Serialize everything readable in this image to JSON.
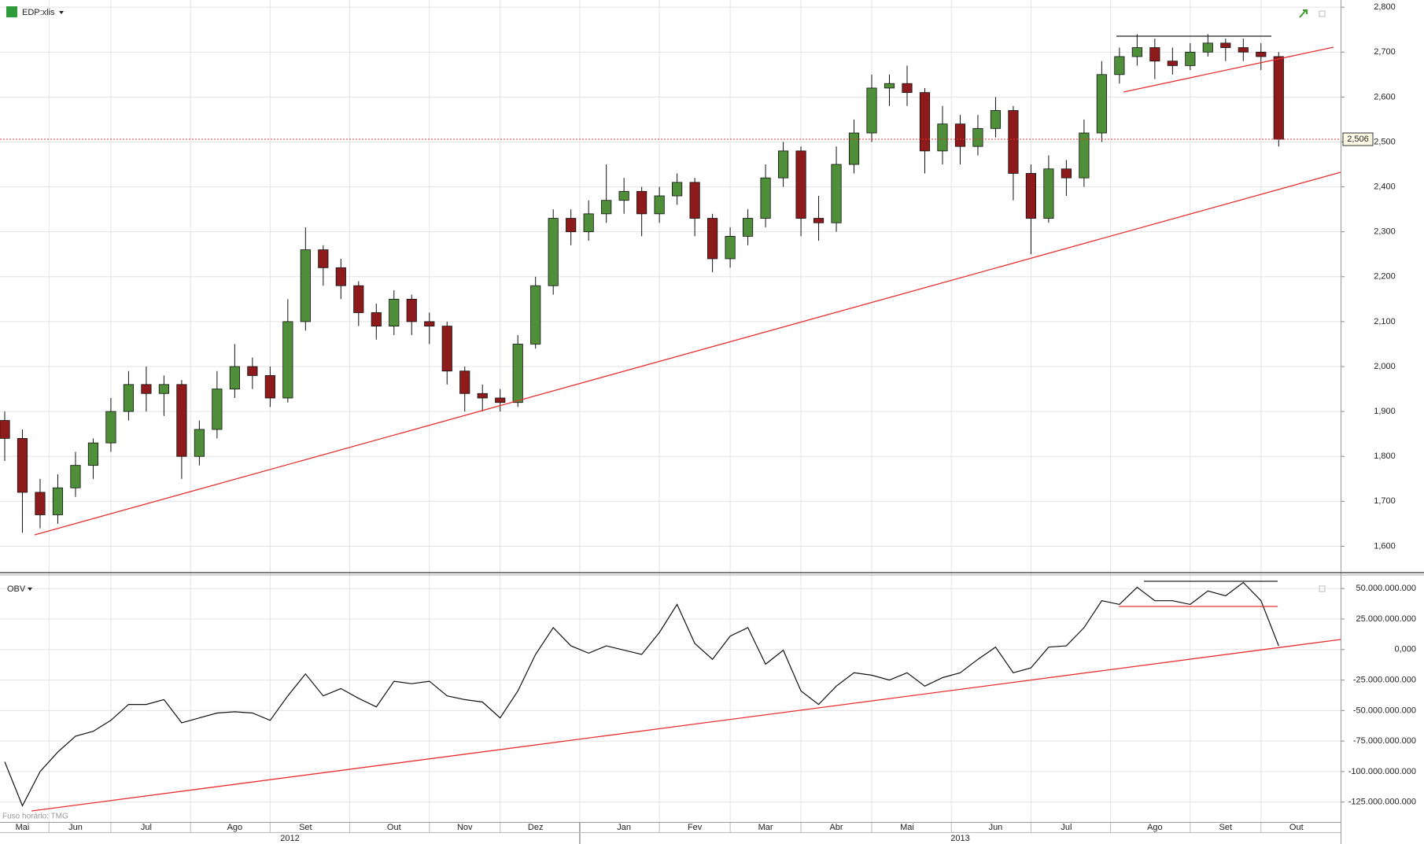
{
  "chart_data": [
    {
      "type": "candlestick",
      "title": "EDP:xlis",
      "categories": [
        null,
        "Mai",
        null,
        null,
        "Jun",
        null,
        null,
        null,
        "Jul",
        null,
        null,
        null,
        null,
        "Ago",
        null,
        null,
        null,
        "Set",
        null,
        null,
        null,
        null,
        "Out",
        null,
        null,
        null,
        "Nov",
        null,
        null,
        null,
        "Dez",
        null,
        null,
        null,
        null,
        "Jan",
        null,
        null,
        null,
        "Fev",
        null,
        null,
        null,
        "Mar",
        null,
        null,
        null,
        "Abr",
        null,
        null,
        null,
        "Mai",
        null,
        null,
        null,
        null,
        "Jun",
        null,
        null,
        null,
        "Jul",
        null,
        null,
        null,
        null,
        "Ago",
        null,
        null,
        null,
        "Set",
        null,
        null,
        null,
        "Out"
      ],
      "open": [
        1.88,
        1.84,
        1.72,
        1.67,
        1.73,
        1.78,
        1.83,
        1.9,
        1.96,
        1.94,
        1.96,
        1.8,
        1.86,
        1.95,
        2.0,
        1.98,
        1.93,
        2.1,
        2.26,
        2.22,
        2.18,
        2.12,
        2.09,
        2.15,
        2.1,
        2.09,
        1.99,
        1.94,
        1.93,
        1.92,
        2.05,
        2.18,
        2.33,
        2.3,
        2.34,
        2.37,
        2.39,
        2.34,
        2.38,
        2.41,
        2.33,
        2.24,
        2.29,
        2.33,
        2.42,
        2.48,
        2.33,
        2.32,
        2.45,
        2.52,
        2.62,
        2.63,
        2.61,
        2.48,
        2.54,
        2.49,
        2.53,
        2.57,
        2.43,
        2.33,
        2.44,
        2.42,
        2.52,
        2.65,
        2.69,
        2.71,
        2.68,
        2.67,
        2.7,
        2.72,
        2.71,
        2.7,
        2.69,
        null
      ],
      "high": [
        1.9,
        1.86,
        1.75,
        1.76,
        1.81,
        1.84,
        1.93,
        1.99,
        2.0,
        1.98,
        1.97,
        1.88,
        1.99,
        2.05,
        2.02,
        2.0,
        2.15,
        2.31,
        2.27,
        2.24,
        2.19,
        2.14,
        2.17,
        2.16,
        2.12,
        2.1,
        2.0,
        1.96,
        1.95,
        2.07,
        2.2,
        2.35,
        2.35,
        2.37,
        2.45,
        2.42,
        2.4,
        2.4,
        2.43,
        2.42,
        2.34,
        2.31,
        2.35,
        2.45,
        2.5,
        2.49,
        2.38,
        2.49,
        2.55,
        2.65,
        2.65,
        2.67,
        2.62,
        2.58,
        2.56,
        2.56,
        2.6,
        2.58,
        2.45,
        2.47,
        2.46,
        2.55,
        2.68,
        2.71,
        2.74,
        2.73,
        2.71,
        2.72,
        2.74,
        2.73,
        2.73,
        2.72,
        2.7,
        null
      ],
      "low": [
        1.79,
        1.63,
        1.64,
        1.65,
        1.71,
        1.75,
        1.81,
        1.88,
        1.9,
        1.89,
        1.75,
        1.78,
        1.84,
        1.93,
        1.95,
        1.91,
        1.92,
        2.08,
        2.18,
        2.15,
        2.09,
        2.06,
        2.07,
        2.07,
        2.05,
        1.96,
        1.9,
        1.9,
        1.9,
        1.91,
        2.04,
        2.16,
        2.27,
        2.28,
        2.32,
        2.34,
        2.29,
        2.32,
        2.36,
        2.29,
        2.21,
        2.22,
        2.27,
        2.31,
        2.4,
        2.29,
        2.28,
        2.3,
        2.43,
        2.5,
        2.58,
        2.58,
        2.43,
        2.45,
        2.45,
        2.47,
        2.51,
        2.37,
        2.25,
        2.32,
        2.38,
        2.4,
        2.5,
        2.63,
        2.67,
        2.64,
        2.65,
        2.66,
        2.69,
        2.68,
        2.68,
        2.66,
        2.49,
        null
      ],
      "close": [
        1.84,
        1.72,
        1.67,
        1.73,
        1.78,
        1.83,
        1.9,
        1.96,
        1.94,
        1.96,
        1.8,
        1.86,
        1.95,
        2.0,
        1.98,
        1.93,
        2.1,
        2.26,
        2.22,
        2.18,
        2.12,
        2.09,
        2.15,
        2.1,
        2.09,
        1.99,
        1.94,
        1.93,
        1.92,
        2.05,
        2.18,
        2.33,
        2.3,
        2.34,
        2.37,
        2.39,
        2.34,
        2.38,
        2.41,
        2.33,
        2.24,
        2.29,
        2.33,
        2.42,
        2.48,
        2.33,
        2.32,
        2.45,
        2.52,
        2.62,
        2.63,
        2.61,
        2.48,
        2.54,
        2.49,
        2.53,
        2.57,
        2.43,
        2.33,
        2.44,
        2.42,
        2.52,
        2.65,
        2.69,
        2.71,
        2.68,
        2.67,
        2.7,
        2.72,
        2.71,
        2.7,
        2.69,
        2.506,
        null
      ],
      "last_label": "2,506",
      "up_color": "#4f8f3a",
      "down_color": "#8e1b1b",
      "ylim": [
        1.543,
        2.816
      ],
      "yticks": [
        {
          "value": 1.6,
          "label": "1,600"
        },
        {
          "value": 1.7,
          "label": "1,700"
        },
        {
          "value": 1.8,
          "label": "1,800"
        },
        {
          "value": 1.9,
          "label": "1,900"
        },
        {
          "value": 2.0,
          "label": "2,000"
        },
        {
          "value": 2.1,
          "label": "2,100"
        },
        {
          "value": 2.2,
          "label": "2,200"
        },
        {
          "value": 2.3,
          "label": "2,300"
        },
        {
          "value": 2.4,
          "label": "2,400"
        },
        {
          "value": 2.5,
          "label": "2,500"
        },
        {
          "value": 2.6,
          "label": "2,600"
        },
        {
          "value": 2.7,
          "label": "2,700"
        },
        {
          "value": 2.8,
          "label": "2,800"
        }
      ],
      "grid": true,
      "years": [
        "2012",
        "2013"
      ]
    },
    {
      "type": "line",
      "title": "OBV",
      "note": "Fuso horário: TMG",
      "series": [
        {
          "color": "#111111",
          "values": [
            -92000000000,
            -128000000000,
            -100000000000,
            -84000000000,
            -71000000000,
            -67000000000,
            -58000000000,
            -45000000000,
            -45000000000,
            -41000000000,
            -60000000000,
            -56000000000,
            -52000000000,
            -51000000000,
            -52000000000,
            -58000000000,
            -38000000000,
            -20000000000,
            -38000000000,
            -32000000000,
            -40000000000,
            -47000000000,
            -26000000000,
            -28000000000,
            -26000000000,
            -38000000000,
            -41000000000,
            -43000000000,
            -56000000000,
            -34000000000,
            -4000000000,
            18000000000,
            3000000000,
            -3000000000,
            3000000000,
            -500000000,
            -4000000000,
            14000000000,
            37000000000,
            5000000000,
            -8000000000,
            11000000000,
            18000000000,
            -12000000000,
            -500000000,
            -34000000000,
            -45000000000,
            -30000000000,
            -19000000000,
            -21000000000,
            -25000000000,
            -19000000000,
            -30000000000,
            -23000000000,
            -19000000000,
            -8000000000,
            2000000000,
            -19000000000,
            -15000000000,
            2000000000,
            3000000000,
            18000000000,
            40000000000,
            37000000000,
            51000000000,
            40000000000,
            40000000000,
            37000000000,
            48000000000,
            44000000000,
            55000000000,
            40000000000,
            3000000000,
            null
          ]
        }
      ],
      "ylim": [
        -141300000000,
        61100000000
      ],
      "yticks": [
        {
          "value": 50000000000,
          "label": "50.000.000.000"
        },
        {
          "value": 25000000000,
          "label": "25.000.000.000"
        },
        {
          "value": 0,
          "label": "0,000"
        },
        {
          "value": -25000000000,
          "label": "-25.000.000.000"
        },
        {
          "value": -50000000000,
          "label": "-50.000.000.000"
        },
        {
          "value": -75000000000,
          "label": "-75.000.000.000"
        },
        {
          "value": -100000000000,
          "label": "-100.000.000.000"
        },
        {
          "value": -125000000000,
          "label": "-125.000.000.000"
        }
      ],
      "grid": true
    }
  ]
}
